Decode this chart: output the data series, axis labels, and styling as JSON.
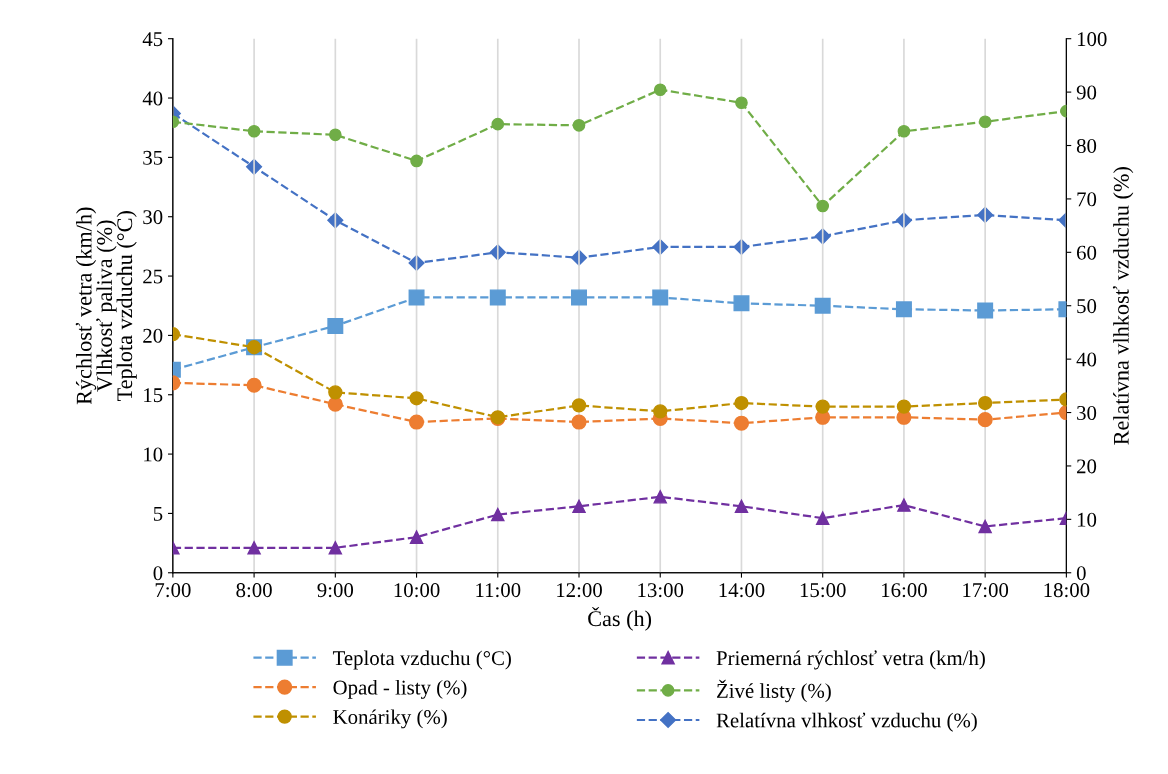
{
  "chart_data": {
    "type": "line",
    "xlabel": "Čas (h)",
    "ylabel": "Rýchlosť vetra (km/h)\nVlhkosť paliva (%)\nTeplota vzduchu (°C)",
    "y2label": "Relatívna vlhkosť vzduchu (%)",
    "categories": [
      "7:00",
      "8:00",
      "9:00",
      "10:00",
      "11:00",
      "12:00",
      "13:00",
      "14:00",
      "15:00",
      "16:00",
      "17:00",
      "18:00"
    ],
    "ylim": [
      0,
      45
    ],
    "yticks": [
      0,
      5,
      10,
      15,
      20,
      25,
      30,
      35,
      40,
      45
    ],
    "y2lim": [
      0,
      100
    ],
    "y2ticks": [
      0,
      10,
      20,
      30,
      40,
      50,
      60,
      70,
      80,
      90,
      100
    ],
    "grid": "x",
    "legend": "bottom",
    "line_style": "dashed",
    "series": [
      {
        "name": "Teplota vzduchu (°C)",
        "color": "#5b9bd5",
        "marker": "square",
        "values": [
          17.1,
          19.0,
          20.8,
          23.2,
          23.2,
          23.2,
          23.2,
          22.7,
          22.5,
          22.2,
          22.1,
          22.2
        ]
      },
      {
        "name": "Opad - listy (%)",
        "color": "#ed7d31",
        "marker": "circle",
        "values": [
          16.0,
          15.8,
          14.2,
          12.7,
          13.0,
          12.7,
          13.0,
          12.6,
          13.1,
          13.1,
          12.9,
          13.5
        ]
      },
      {
        "name": "Konáriky (%)",
        "color": "#bf9000",
        "marker": "circle",
        "values": [
          20.1,
          19.0,
          15.2,
          14.7,
          13.1,
          14.1,
          13.6,
          14.3,
          14.0,
          14.0,
          14.3,
          14.6
        ]
      },
      {
        "name": "Priemerná rýchlosť vetra (km/h)",
        "color": "#7030a0",
        "marker": "triangle",
        "values": [
          2.1,
          2.1,
          2.1,
          3.0,
          4.9,
          5.6,
          6.4,
          5.6,
          4.6,
          5.7,
          3.9,
          4.6
        ]
      },
      {
        "name": "Živé listy (%)",
        "color": "#70ad47",
        "marker": "circle",
        "values": [
          38.0,
          37.2,
          36.9,
          34.7,
          37.8,
          37.7,
          40.7,
          39.6,
          30.9,
          37.2,
          38.0,
          38.9
        ]
      },
      {
        "name": "Relatívna vlhkosť vzduchu (%)",
        "color": "#4472c4",
        "marker": "diamond",
        "axis": "y2",
        "values": [
          86,
          76,
          66,
          58,
          60,
          59,
          61,
          61,
          63,
          66,
          67,
          66
        ]
      }
    ]
  }
}
